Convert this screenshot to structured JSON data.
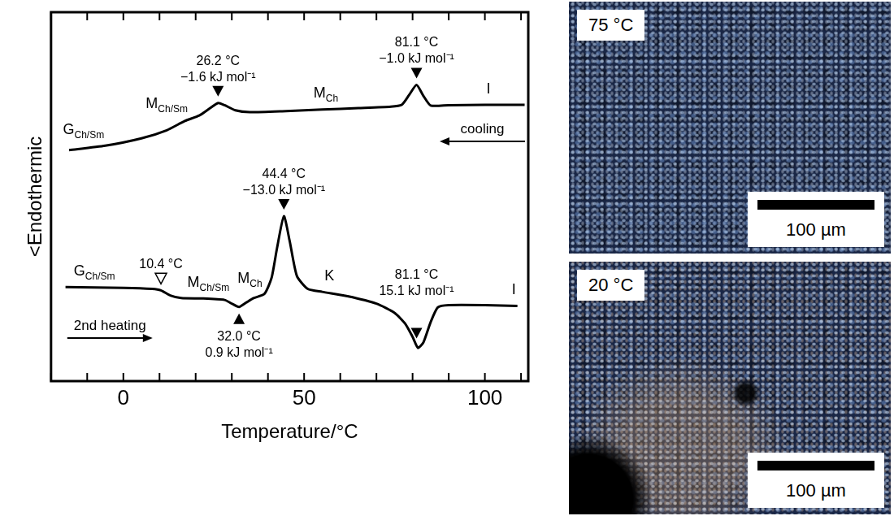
{
  "chart_data": {
    "type": "line",
    "x_label": "Temperature/°C",
    "y_label": "<Endothermic",
    "xlim": [
      -20,
      112
    ],
    "xticks": [
      0,
      50,
      100
    ],
    "xticks_minor": [
      -20,
      -10,
      10,
      20,
      30,
      40,
      60,
      70,
      80,
      90,
      110
    ],
    "ylim": [
      0,
      100
    ],
    "tick_labels": "x",
    "grid": false,
    "series": [
      {
        "name": "cooling",
        "color": "#000000",
        "x": [
          111,
          100,
          90,
          85,
          83,
          81.1,
          79,
          77,
          74,
          65,
          55,
          45,
          35,
          31,
          28,
          26.2,
          24,
          21,
          17,
          12,
          5,
          -5,
          -15
        ],
        "values": [
          74.9,
          74.9,
          74.8,
          74.7,
          77.3,
          80.3,
          77.5,
          74.9,
          74.4,
          74.0,
          73.6,
          73.2,
          72.9,
          73.4,
          74.8,
          75.4,
          74.0,
          72.0,
          70.5,
          68.0,
          65.8,
          63.8,
          62.6
        ]
      },
      {
        "name": "2nd heating",
        "color": "#000000",
        "x": [
          -16,
          0,
          8,
          10.4,
          13,
          16,
          22,
          28,
          30,
          32,
          34,
          36,
          39,
          41,
          42.5,
          44.4,
          46,
          48,
          51,
          55,
          62,
          70,
          75,
          78,
          80,
          81.5,
          83,
          85,
          87,
          90,
          100,
          109
        ],
        "values": [
          25.5,
          25.3,
          25.0,
          24.6,
          23.2,
          22.5,
          22.4,
          22.0,
          21.0,
          20.1,
          21.3,
          22.5,
          23.6,
          28.0,
          36.0,
          44.7,
          38.0,
          28.5,
          25.0,
          24.2,
          23.0,
          21.0,
          18.5,
          15.5,
          12.0,
          9.0,
          10.5,
          16.0,
          20.0,
          20.6,
          20.6,
          20.4
        ]
      }
    ],
    "peaks": [
      {
        "series": "cooling",
        "x": 26.2,
        "text": [
          "26.2 °C",
          "−1.6 kJ mol⁻¹"
        ],
        "marker": "triangle"
      },
      {
        "series": "cooling",
        "x": 81.1,
        "text": [
          "81.1 °C",
          "−1.0 kJ mol⁻¹"
        ],
        "marker": "triangle"
      },
      {
        "series": "2nd heating",
        "x": 10.4,
        "text": [
          "10.4 °C"
        ],
        "marker": "triangle-open"
      },
      {
        "series": "2nd heating",
        "x": 44.4,
        "text": [
          "44.4 °C",
          "−13.0 kJ mol⁻¹"
        ],
        "marker": "triangle"
      },
      {
        "series": "2nd heating",
        "x": 32.0,
        "text": [
          "32.0 °C",
          "0.9 kJ mol⁻¹"
        ],
        "marker": "triangle"
      },
      {
        "series": "2nd heating",
        "x": 81.1,
        "text": [
          "81.1 °C",
          "15.1 kJ mol⁻¹"
        ],
        "marker": "triangle"
      }
    ],
    "phase_labels": [
      {
        "series": "cooling",
        "x": -11,
        "text": "G",
        "sub": "Ch/Sm"
      },
      {
        "series": "cooling",
        "x": 12,
        "text": "M",
        "sub": "Ch/Sm"
      },
      {
        "series": "cooling",
        "x": 56,
        "text": "M",
        "sub": "Ch"
      },
      {
        "series": "cooling",
        "x": 101,
        "text": "I"
      },
      {
        "series": "2nd heating",
        "x": -8,
        "text": "G",
        "sub": "Ch/Sm"
      },
      {
        "series": "2nd heating",
        "x": 23.5,
        "text": "M",
        "sub": "Ch/Sm"
      },
      {
        "series": "2nd heating",
        "x": 35,
        "text": "M",
        "sub": "Ch"
      },
      {
        "series": "2nd heating",
        "x": 57,
        "text": "K"
      },
      {
        "series": "2nd heating",
        "x": 108,
        "text": "I"
      }
    ]
  },
  "micrographs": [
    {
      "label": "75 °C",
      "scale_bar": "100 µm"
    },
    {
      "label": "20 °C",
      "scale_bar": "100 µm"
    }
  ]
}
